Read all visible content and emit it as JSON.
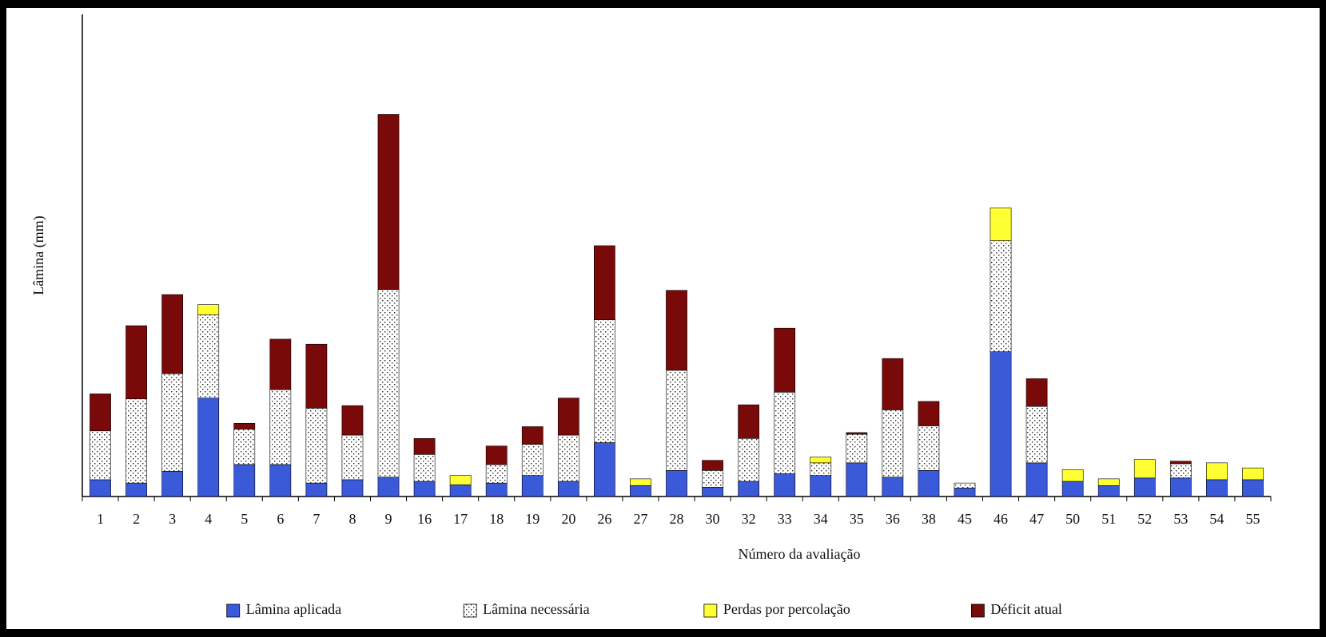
{
  "chart_data": {
    "type": "stacked-bar",
    "x_label": "Número da avaliação",
    "y_label": "Lâmina (mm)",
    "categories": [
      "1",
      "2",
      "3",
      "4",
      "5",
      "6",
      "7",
      "8",
      "9",
      "16",
      "17",
      "18",
      "19",
      "20",
      "26",
      "27",
      "28",
      "30",
      "32",
      "33",
      "34",
      "35",
      "36",
      "38",
      "45",
      "46",
      "47",
      "50",
      "51",
      "52",
      "53",
      "54",
      "55"
    ],
    "series": [
      {
        "name": "Lâmina aplicada",
        "color": "#3a5ad9",
        "values": [
          2.0,
          1.6,
          3.0,
          11.7,
          3.8,
          3.8,
          1.6,
          2.0,
          2.3,
          1.8,
          1.4,
          1.6,
          2.5,
          1.8,
          6.4,
          1.3,
          3.1,
          1.1,
          1.8,
          2.7,
          2.5,
          4.0,
          2.3,
          3.1,
          1.0,
          17.2,
          4.0,
          1.8,
          1.3,
          2.2,
          2.2,
          2.0,
          2.0
        ]
      },
      {
        "name": "Lâmina necessária",
        "color": "#ffffff",
        "pattern": "dotted",
        "values": [
          5.8,
          10.0,
          11.6,
          9.9,
          4.2,
          8.9,
          8.9,
          5.3,
          22.3,
          3.2,
          0,
          2.2,
          3.7,
          5.5,
          14.6,
          0,
          11.9,
          2.0,
          5.1,
          9.7,
          1.5,
          3.4,
          8.0,
          5.3,
          0.6,
          13.2,
          6.7,
          0,
          0,
          0,
          1.7,
          0,
          0
        ]
      },
      {
        "name": "Perdas por percolação",
        "color": "#ffff33",
        "values": [
          0,
          0,
          0,
          1.2,
          0,
          0,
          0,
          0,
          0,
          0,
          1.1,
          0,
          0,
          0,
          0,
          0.8,
          0,
          0,
          0,
          0,
          0.7,
          0,
          0,
          0,
          0,
          3.9,
          0,
          1.4,
          0.8,
          2.2,
          0,
          2.0,
          1.4
        ]
      },
      {
        "name": "Déficit atual",
        "color": "#7a0a0a",
        "values": [
          4.4,
          8.7,
          9.4,
          0,
          0.7,
          6.0,
          7.6,
          3.5,
          20.8,
          1.9,
          0,
          2.2,
          2.1,
          4.4,
          8.8,
          0,
          9.5,
          1.2,
          4.0,
          7.6,
          0,
          0.2,
          6.1,
          2.9,
          0,
          0,
          3.3,
          0,
          0,
          0,
          0.3,
          0,
          0
        ]
      }
    ],
    "ylim": [
      0,
      57.3
    ],
    "legend": "bottom"
  }
}
